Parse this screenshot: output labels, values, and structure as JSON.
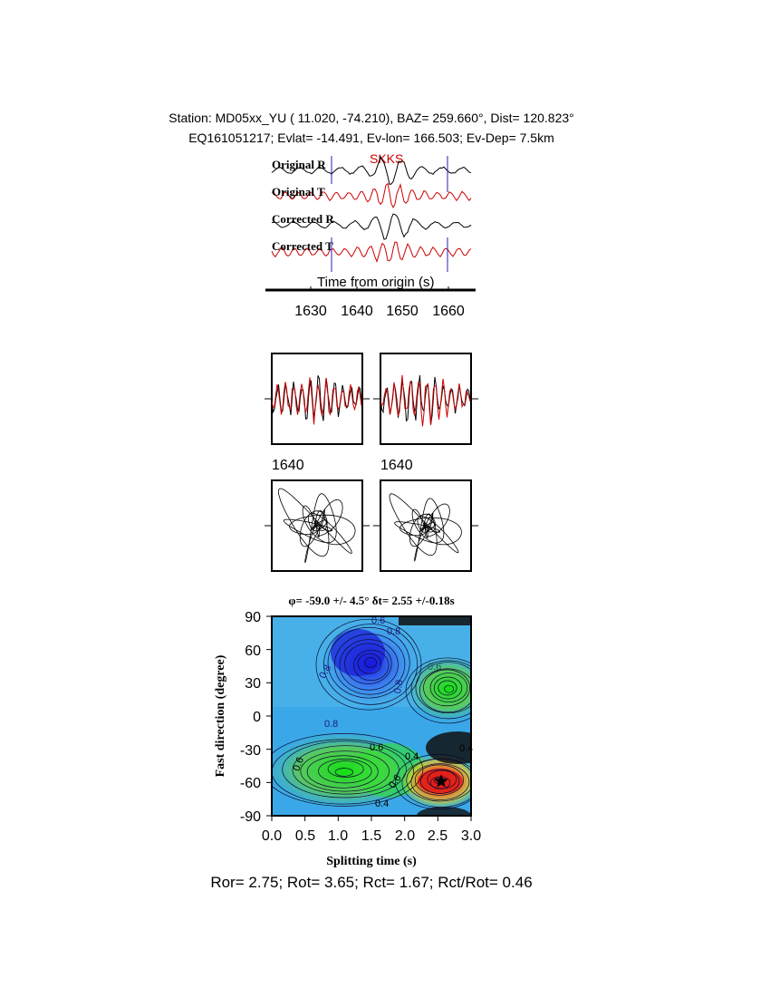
{
  "header": {
    "station_line": "Station: MD05xx_YU (  11.020,  -74.210), BAZ=  259.660°, Dist=  120.823°",
    "event_line": "EQ161051217; Evlat= -14.491, Ev-lon= 166.503; Ev-Dep=  7.5km"
  },
  "traces": {
    "phase_label": "SKKS",
    "labels": [
      "Original R",
      "Original T",
      "Corrected R",
      "Corrected T"
    ],
    "colors": [
      "#000000",
      "#cc0000",
      "#000000",
      "#cc0000"
    ],
    "time_axis": {
      "label": "Time from origin (s)",
      "ticks": [
        "1630",
        "1640",
        "1650",
        "1660"
      ]
    }
  },
  "particle_panels": {
    "waveform_tick_labels": [
      "1640",
      "1640"
    ]
  },
  "grid_search": {
    "title": "φ= -59.0 +/- 4.5° δt= 2.55 +/-0.18s",
    "xlabel": "Splitting time (s)",
    "ylabel": "Fast direction (degree)",
    "x_ticks": [
      "0.0",
      "0.5",
      "1.0",
      "1.5",
      "2.0",
      "2.5",
      "3.0"
    ],
    "y_ticks": [
      "90",
      "60",
      "30",
      "0",
      "-30",
      "-60",
      "-90"
    ],
    "contour_labels": [
      "0.8",
      "0.8",
      "0.8",
      "0.8",
      "0.6",
      "0.6",
      "0.6",
      "0.6",
      "0.4",
      "0.4",
      "0.6",
      "0.4"
    ]
  },
  "chart_data": {
    "type": "heatmap",
    "title": "φ= -59.0 +/- 4.5° δt= 2.55 +/-0.18s",
    "xlabel": "Splitting time (s)",
    "ylabel": "Fast direction (degree)",
    "xlim": [
      0,
      3
    ],
    "ylim": [
      -90,
      90
    ],
    "best": {
      "dt": 2.55,
      "phi": -59.0
    }
  },
  "footer": {
    "ratios": "Ror= 2.75; Rot= 3.65; Rct= 1.67; Rct/Rot= 0.46"
  }
}
